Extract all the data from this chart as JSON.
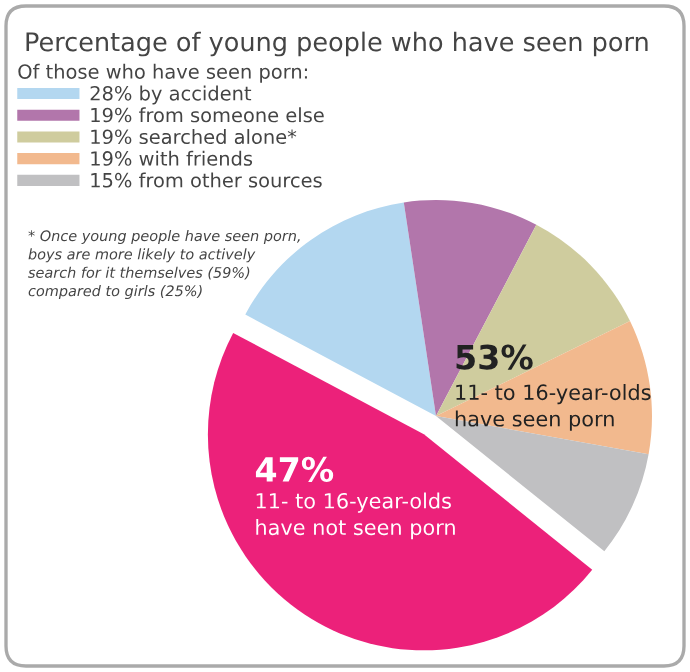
{
  "chart_data": {
    "type": "pie",
    "title": "Percentage of young people who have seen porn",
    "legend_title": "Of those who have seen porn:",
    "categories": [
      "28% by accident",
      "19% from someone else",
      "19% searched alone*",
      "19% with friends",
      "15% from other sources",
      "11- to 16-year-olds\nhave not seen porn"
    ],
    "values": [
      14.84,
      10.07,
      10.07,
      10.07,
      7.95,
      47
    ],
    "colors": [
      "#b3d7f0",
      "#b276ab",
      "#cfcc9e",
      "#f2b98e",
      "#c0c0c2",
      "#ec217a"
    ],
    "value_labels": [
      null,
      null,
      null,
      null,
      null,
      "47%"
    ],
    "legend": "top left",
    "annotations": [
      "53%",
      "11- to 16-year-olds\nhave seen porn",
      "* Once young people have seen porn,\nboys are more likely to actively\nsearch for it themselves (59%)\ncompared to girls (25%)"
    ]
  }
}
